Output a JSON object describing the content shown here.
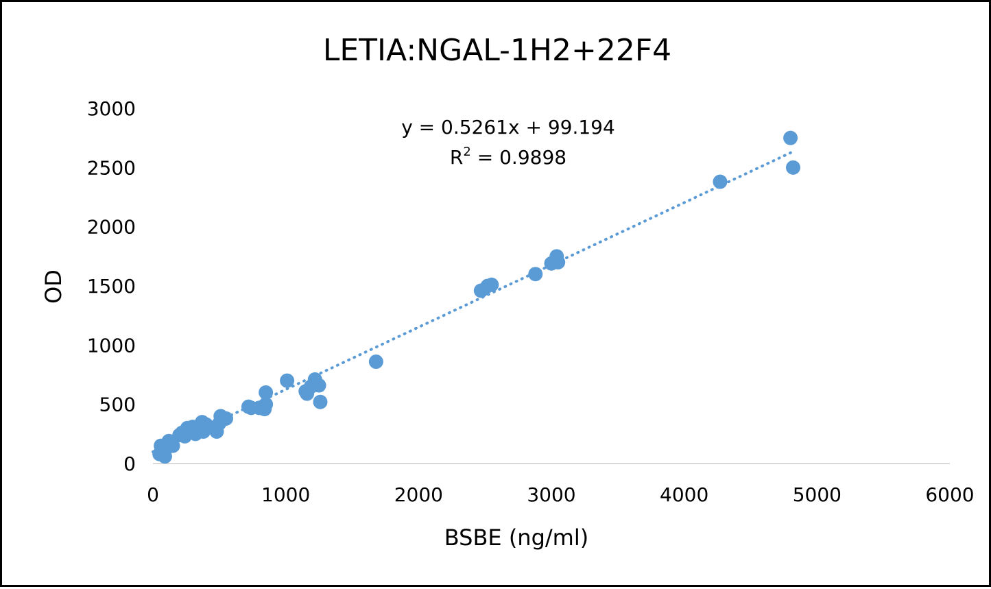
{
  "chart_data": {
    "type": "scatter",
    "title": "LETIA:NGAL-1H2+22F4",
    "xlabel": "BSBE (ng/ml)",
    "ylabel": "OD",
    "xlim": [
      0,
      6000
    ],
    "ylim": [
      0,
      3000
    ],
    "x_ticks": [
      "0",
      "1000",
      "2000",
      "3000",
      "4000",
      "5000",
      "6000"
    ],
    "y_ticks": [
      "0",
      "500",
      "1000",
      "1500",
      "2000",
      "2500",
      "3000"
    ],
    "grid": false,
    "marker_color": "#5B9BD5",
    "trendline": {
      "type": "linear",
      "slope": 0.5261,
      "intercept": 99.194,
      "style": "dotted",
      "equation": "y = 0.5261x + 99.194",
      "r2_label": "R",
      "r2_sup": "2",
      "r2_value": " = 0.9898"
    },
    "points": [
      [
        50,
        80
      ],
      [
        60,
        150
      ],
      [
        70,
        120
      ],
      [
        80,
        100
      ],
      [
        90,
        60
      ],
      [
        100,
        130
      ],
      [
        120,
        190
      ],
      [
        150,
        150
      ],
      [
        200,
        240
      ],
      [
        220,
        260
      ],
      [
        240,
        230
      ],
      [
        260,
        300
      ],
      [
        280,
        270
      ],
      [
        300,
        310
      ],
      [
        320,
        250
      ],
      [
        330,
        280
      ],
      [
        350,
        300
      ],
      [
        370,
        350
      ],
      [
        380,
        270
      ],
      [
        400,
        330
      ],
      [
        420,
        310
      ],
      [
        460,
        300
      ],
      [
        480,
        270
      ],
      [
        500,
        340
      ],
      [
        510,
        400
      ],
      [
        550,
        380
      ],
      [
        720,
        480
      ],
      [
        740,
        470
      ],
      [
        800,
        470
      ],
      [
        840,
        460
      ],
      [
        850,
        500
      ],
      [
        850,
        600
      ],
      [
        1010,
        700
      ],
      [
        1150,
        610
      ],
      [
        1160,
        590
      ],
      [
        1190,
        650
      ],
      [
        1220,
        710
      ],
      [
        1250,
        660
      ],
      [
        1260,
        520
      ],
      [
        1680,
        860
      ],
      [
        2470,
        1460
      ],
      [
        2520,
        1500
      ],
      [
        2550,
        1510
      ],
      [
        2880,
        1600
      ],
      [
        3000,
        1690
      ],
      [
        3040,
        1750
      ],
      [
        3050,
        1700
      ],
      [
        4270,
        2380
      ],
      [
        4800,
        2750
      ],
      [
        4820,
        2500
      ]
    ]
  }
}
